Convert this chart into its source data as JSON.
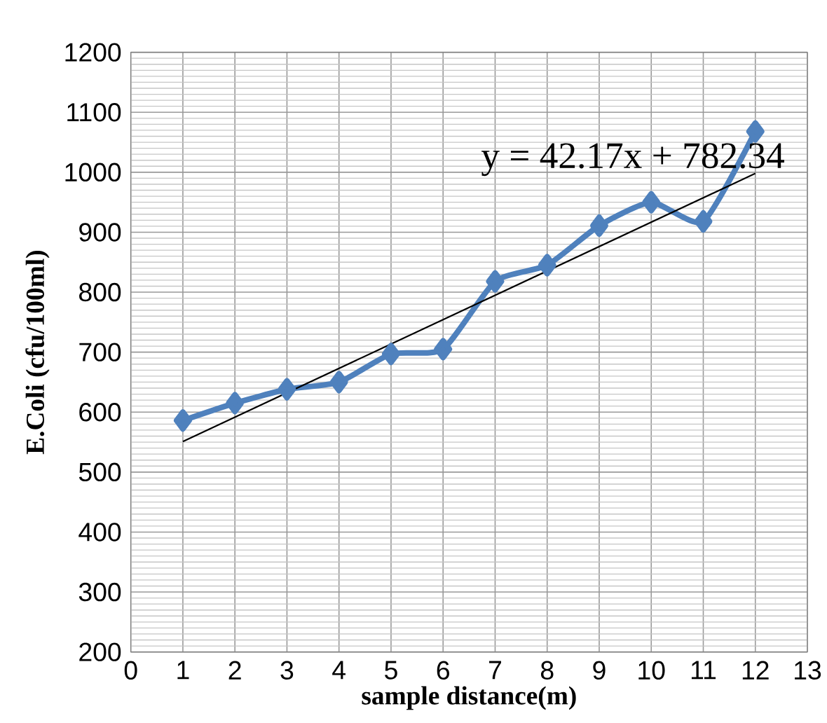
{
  "chart_data": {
    "type": "line",
    "xlabel": "sample distance(m)",
    "ylabel": "E.Coli (cfu/100ml)",
    "xlim": [
      0,
      13
    ],
    "xticks": [
      0,
      1,
      2,
      3,
      4,
      5,
      6,
      7,
      8,
      9,
      10,
      11,
      12,
      13
    ],
    "ylim": [
      200,
      1200
    ],
    "yticks": [
      200,
      300,
      400,
      500,
      600,
      700,
      800,
      900,
      1000,
      1100,
      1200
    ],
    "grid": true,
    "line_style": "solid",
    "series": [
      {
        "color": "#4f81bd",
        "marker": "diamond",
        "x": [
          1,
          2,
          3,
          4,
          5,
          6,
          7,
          8,
          9,
          10,
          11,
          12
        ],
        "values": [
          586,
          615,
          638,
          650,
          697,
          705,
          818,
          845,
          911,
          950,
          918,
          1068
        ]
      },
      {
        "color": "#000000",
        "marker": "none",
        "x": [
          1,
          12
        ],
        "values": [
          551,
          998
        ]
      }
    ],
    "annotations": [
      "y = 42.17x + 782.34"
    ]
  }
}
